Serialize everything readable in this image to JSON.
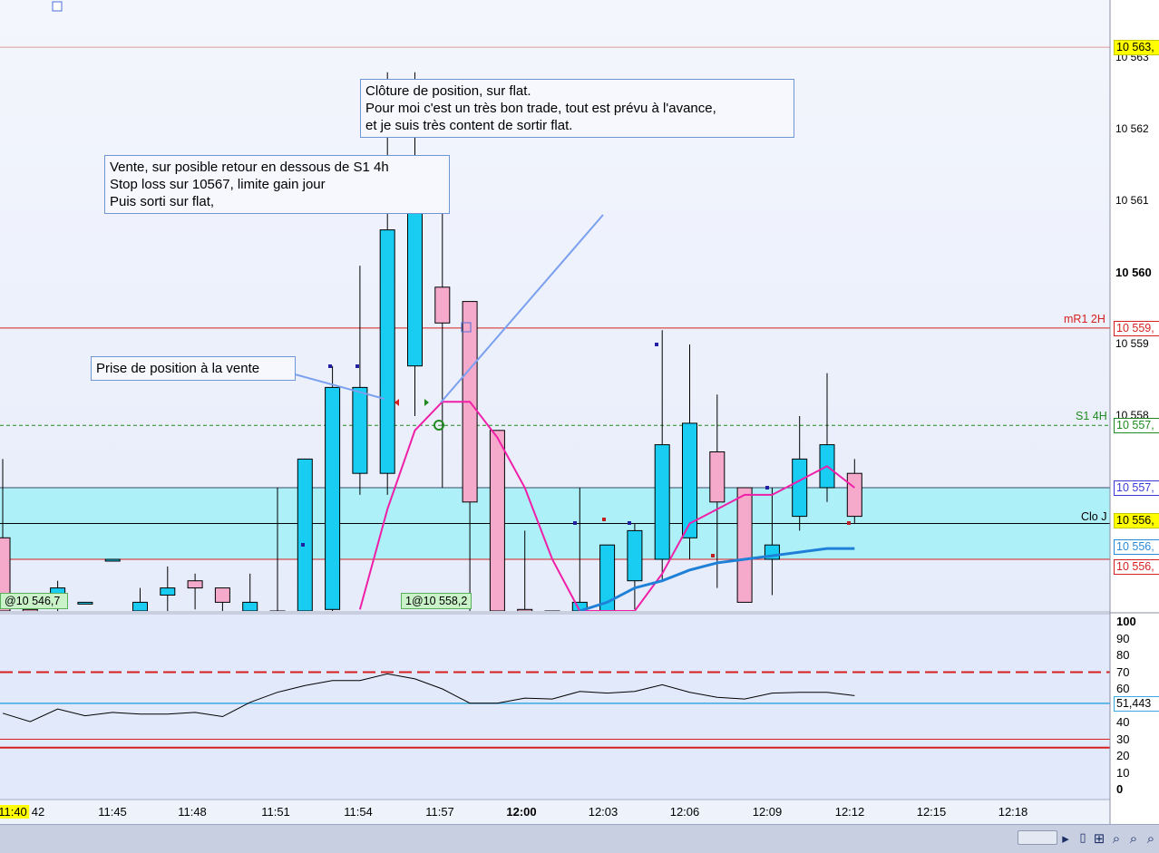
{
  "price_axis": {
    "ticks": [
      {
        "label": "10 563",
        "bold": false,
        "price": 10563
      },
      {
        "label": "10 562",
        "bold": false,
        "price": 10562
      },
      {
        "label": "10 561",
        "bold": false,
        "price": 10561
      },
      {
        "label": "10 560",
        "bold": true,
        "price": 10560
      },
      {
        "label": "10 559",
        "bold": false,
        "price": 10559
      },
      {
        "label": "10 558",
        "bold": false,
        "price": 10558
      },
      {
        "label": "10 556",
        "bold": false,
        "price": 10556.2
      }
    ],
    "tags": [
      {
        "label": "10 563,",
        "bg": "#ffff00",
        "fg": "#000000",
        "border": "#c9c900",
        "price": 10563.15
      },
      {
        "label": "10 559,",
        "bg": "#ffffff",
        "fg": "#d62020",
        "border": "#d62020",
        "price": 10559.23
      },
      {
        "label": "10 557,",
        "bg": "#ffffff",
        "fg": "#1f8a1f",
        "border": "#1f8a1f",
        "price": 10557.87
      },
      {
        "label": "10 557,",
        "bg": "#ffffff",
        "fg": "#3a3ad8",
        "border": "#3a3ad8",
        "price": 10557.0
      },
      {
        "label": "10 556,",
        "bg": "#ffff00",
        "fg": "#000000",
        "border": "#c9c900",
        "price": 10556.55
      },
      {
        "label": "10 556,",
        "bg": "#ffffff",
        "fg": "#2a8ad8",
        "border": "#2a8ad8",
        "price": 10556.18
      },
      {
        "label": "10 556,",
        "bg": "#ffffff",
        "fg": "#d62020",
        "border": "#d62020",
        "price": 10555.9
      }
    ]
  },
  "level_lines": {
    "mR1_label": "mR1 2H",
    "S1_label": "S1 4H",
    "clo_label": "Clo J"
  },
  "annotations": {
    "close_note": [
      "Clôture de position, sur flat.",
      "Pour moi c'est un très bon trade, tout est prévu à l'avance,",
      "et je suis très content de sortir flat."
    ],
    "sell_note": [
      "Vente, sur posible retour en dessous de S1 4h",
      "Stop loss sur 10567, limite gain jour",
      "Puis sorti sur flat,"
    ],
    "entry_note": "Prise de position à la vente"
  },
  "orders": {
    "left_tag": "@10 546,7",
    "mid_tag": "1@10 558,2"
  },
  "time_axis": {
    "labels": [
      {
        "label": "11:40",
        "bold": false,
        "highlight": true
      },
      {
        "label": "42",
        "bold": false
      },
      {
        "label": "11:45",
        "bold": false
      },
      {
        "label": "11:48",
        "bold": false
      },
      {
        "label": "11:51",
        "bold": false
      },
      {
        "label": "11:54",
        "bold": false
      },
      {
        "label": "11:57",
        "bold": false
      },
      {
        "label": "12:00",
        "bold": true
      },
      {
        "label": "12:03",
        "bold": false
      },
      {
        "label": "12:06",
        "bold": false
      },
      {
        "label": "12:09",
        "bold": false
      },
      {
        "label": "12:12",
        "bold": false
      },
      {
        "label": "12:15",
        "bold": false
      },
      {
        "label": "12:18",
        "bold": false
      }
    ]
  },
  "oscillator": {
    "axis_labels": [
      "100",
      "90",
      "80",
      "70",
      "60",
      "50",
      "40",
      "30",
      "20",
      "10",
      "0"
    ],
    "current_value": "51,443",
    "upper_level": 70,
    "lower_level": 25,
    "mid_level": 51.443,
    "values": [
      45.5,
      40.5,
      48,
      44,
      46,
      45,
      45,
      46,
      43.5,
      52,
      58,
      62,
      65,
      65,
      69,
      66,
      60,
      51.5,
      51.5,
      54.5,
      54,
      58.5,
      57.5,
      58.5,
      62.5,
      58,
      55,
      54,
      57.5,
      58,
      58,
      56
    ]
  },
  "chart_data": {
    "type": "candlestick",
    "price_unit": "points",
    "candles": [
      {
        "o": 10556.3,
        "h": 10557.4,
        "l": 10554.8,
        "c": 10555.0
      },
      {
        "o": 10555.3,
        "h": 10555.4,
        "l": 10555.0,
        "c": 10555.2
      },
      {
        "o": 10555.5,
        "h": 10555.7,
        "l": 10554.9,
        "c": 10555.6
      },
      {
        "o": 10555.4,
        "h": 10555.4,
        "l": 10555.4,
        "c": 10555.4
      },
      {
        "o": 10556.0,
        "h": 10556.0,
        "l": 10556.0,
        "c": 10556.0
      },
      {
        "o": 10555.2,
        "h": 10555.6,
        "l": 10555.0,
        "c": 10555.4
      },
      {
        "o": 10555.5,
        "h": 10555.9,
        "l": 10555.1,
        "c": 10555.6
      },
      {
        "o": 10555.7,
        "h": 10555.8,
        "l": 10555.3,
        "c": 10555.6
      },
      {
        "o": 10555.6,
        "h": 10555.6,
        "l": 10555.0,
        "c": 10555.4
      },
      {
        "o": 10555.2,
        "h": 10555.8,
        "l": 10554.9,
        "c": 10555.4
      },
      {
        "o": 10555.2,
        "h": 10557.0,
        "l": 10554.8,
        "c": 10555.1
      },
      {
        "o": 10555.1,
        "h": 10557.4,
        "l": 10554.9,
        "c": 10557.4
      },
      {
        "o": 10555.3,
        "h": 10558.7,
        "l": 10555.0,
        "c": 10558.4
      },
      {
        "o": 10557.2,
        "h": 10560.1,
        "l": 10556.9,
        "c": 10558.4
      },
      {
        "o": 10557.2,
        "h": 10562.8,
        "l": 10556.9,
        "c": 10560.6
      },
      {
        "o": 10558.7,
        "h": 10562.8,
        "l": 10558.0,
        "c": 10561.2
      },
      {
        "o": 10559.8,
        "h": 10561.0,
        "l": 10557.0,
        "c": 10559.3
      },
      {
        "o": 10559.6,
        "h": 10559.6,
        "l": 10555.2,
        "c": 10556.8
      },
      {
        "o": 10557.8,
        "h": 10557.8,
        "l": 10555.0,
        "c": 10555.1
      },
      {
        "o": 10555.3,
        "h": 10556.4,
        "l": 10555.0,
        "c": 10555.0
      },
      {
        "o": 10555.1,
        "h": 10555.1,
        "l": 10555.0,
        "c": 10555.0
      },
      {
        "o": 10555.1,
        "h": 10557.0,
        "l": 10554.9,
        "c": 10555.4
      },
      {
        "o": 10555.0,
        "h": 10556.2,
        "l": 10554.9,
        "c": 10556.2
      },
      {
        "o": 10555.7,
        "h": 10556.5,
        "l": 10555.3,
        "c": 10556.4
      },
      {
        "o": 10556.0,
        "h": 10559.2,
        "l": 10555.7,
        "c": 10557.6
      },
      {
        "o": 10556.3,
        "h": 10559.0,
        "l": 10556.0,
        "c": 10557.9
      },
      {
        "o": 10557.5,
        "h": 10558.3,
        "l": 10555.6,
        "c": 10556.8
      },
      {
        "o": 10557.0,
        "h": 10557.0,
        "l": 10555.4,
        "c": 10555.4
      },
      {
        "o": 10556.0,
        "h": 10557.0,
        "l": 10555.5,
        "c": 10556.2
      },
      {
        "o": 10556.6,
        "h": 10558.0,
        "l": 10556.4,
        "c": 10557.4
      },
      {
        "o": 10557.0,
        "h": 10558.6,
        "l": 10556.8,
        "c": 10557.6
      },
      {
        "o": 10557.2,
        "h": 10557.4,
        "l": 10556.5,
        "c": 10556.6
      }
    ],
    "ma_pink": [
      null,
      null,
      null,
      null,
      null,
      null,
      null,
      null,
      null,
      null,
      null,
      null,
      null,
      10555.3,
      10556.7,
      10557.8,
      10558.2,
      10558.2,
      10557.7,
      10557.0,
      10556.0,
      10555.2,
      10554.9,
      10555.0,
      10555.8,
      10556.5,
      10556.7,
      10556.9,
      10556.9,
      10557.1,
      10557.3,
      10557.0
    ],
    "ma_blue": [
      null,
      null,
      null,
      null,
      null,
      null,
      null,
      null,
      null,
      null,
      null,
      null,
      null,
      null,
      null,
      null,
      null,
      null,
      null,
      null,
      null,
      10555.2,
      10555.4,
      10555.6,
      10555.7,
      10555.85,
      10555.95,
      10556.0,
      10556.05,
      10556.1,
      10556.15,
      10556.15
    ],
    "levels": {
      "mR1_2H": 10559.23,
      "S1_4H": 10557.87,
      "Clo_J": 10556.5,
      "zone_top": 10557.0,
      "zone_bottom": 10556.0
    }
  }
}
